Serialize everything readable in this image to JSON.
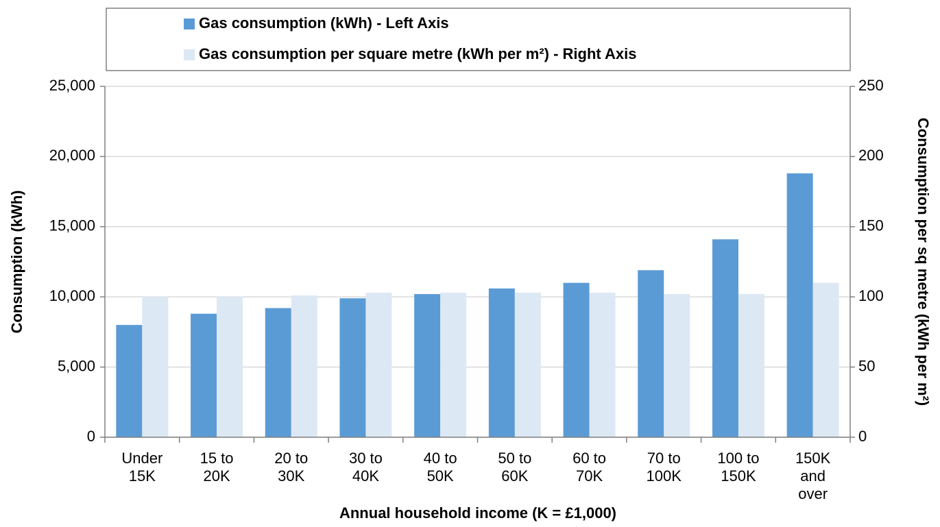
{
  "chart_data": {
    "type": "bar",
    "x_label": "Annual household income (K = £1,000)",
    "y_label": "Consumption (kWh)",
    "y2_label": "Consumption per sq metre (kWh per m²)",
    "categories": [
      "Under 15K",
      "15 to 20K",
      "20 to 30K",
      "30 to 40K",
      "40 to 50K",
      "50 to 60K",
      "60 to 70K",
      "70 to 100K",
      "100 to 150K",
      "150K and over"
    ],
    "series": [
      {
        "name": "Gas consumption (kWh) - Left Axis",
        "color": "#5b9bd5",
        "values": [
          8000,
          8800,
          9200,
          9900,
          10200,
          10600,
          11000,
          11900,
          14100,
          18800
        ]
      },
      {
        "name": "Gas consumption per square metre (kWh per m²) - Right Axis",
        "color": "#dde8f5",
        "axis": "y2",
        "values": [
          100,
          100,
          101,
          103,
          103,
          103,
          103,
          102,
          102,
          110
        ]
      }
    ],
    "ylim": [
      0,
      25000
    ],
    "yticks": [
      0,
      {
        "value": 5000,
        "label": "5,000"
      },
      {
        "value": 10000,
        "label": "10,000"
      },
      {
        "value": 15000,
        "label": "15,000"
      },
      {
        "value": 20000,
        "label": "20,000"
      },
      {
        "value": 25000,
        "label": "25,000"
      }
    ],
    "y2lim": [
      0,
      250
    ],
    "y2ticks": [
      0,
      50,
      100,
      150,
      200,
      250
    ],
    "grid": true
  }
}
